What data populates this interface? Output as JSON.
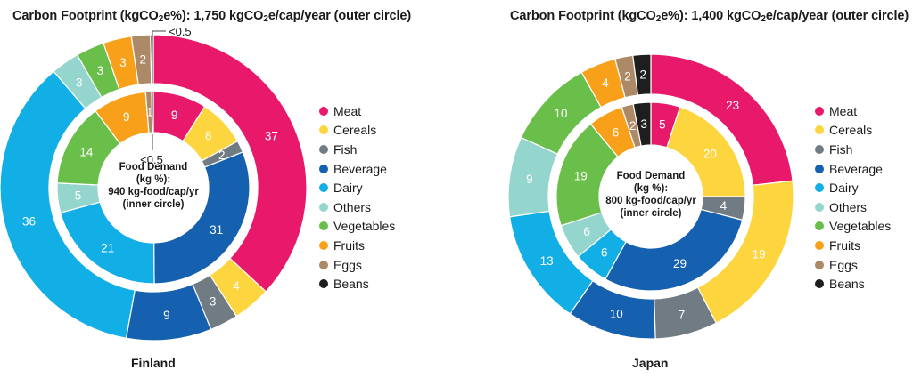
{
  "categories": [
    "Meat",
    "Cereals",
    "Fish",
    "Beverage",
    "Dairy",
    "Others",
    "Vegetables",
    "Fruits",
    "Eggs",
    "Beans"
  ],
  "colors": {
    "Meat": "#e8196b",
    "Cereals": "#fcd53f",
    "Fish": "#707b84",
    "Beverage": "#1660b0",
    "Dairy": "#12aee6",
    "Others": "#94d5cd",
    "Vegetables": "#6abf4b",
    "Fruits": "#f9a01b",
    "Eggs": "#ad8a67",
    "Beans": "#1e1e1e"
  },
  "chart_data": [
    {
      "type": "pie",
      "name": "Finland",
      "title": "Carbon Footprint (kgCO₂e%): 1,750 kgCO₂e/cap/year (outer circle)",
      "center_label": [
        "Food Demand",
        "(kg %):",
        "940 kg-food/cap/yr",
        "(inner circle)"
      ],
      "outer": [
        {
          "category": "Meat",
          "value": 37,
          "label": "37"
        },
        {
          "category": "Cereals",
          "value": 4,
          "label": "4"
        },
        {
          "category": "Fish",
          "value": 3,
          "label": "3"
        },
        {
          "category": "Beverage",
          "value": 9,
          "label": "9"
        },
        {
          "category": "Dairy",
          "value": 36,
          "label": "36"
        },
        {
          "category": "Others",
          "value": 3,
          "label": "3"
        },
        {
          "category": "Vegetables",
          "value": 3,
          "label": "3"
        },
        {
          "category": "Fruits",
          "value": 3,
          "label": "3"
        },
        {
          "category": "Eggs",
          "value": 2,
          "label": "2"
        },
        {
          "category": "Beans",
          "value": 0.3,
          "label": "<0.5"
        }
      ],
      "inner": [
        {
          "category": "Meat",
          "value": 9,
          "label": "9"
        },
        {
          "category": "Cereals",
          "value": 8,
          "label": "8"
        },
        {
          "category": "Fish",
          "value": 2,
          "label": "2"
        },
        {
          "category": "Beverage",
          "value": 31,
          "label": "31"
        },
        {
          "category": "Dairy",
          "value": 21,
          "label": "21"
        },
        {
          "category": "Others",
          "value": 5,
          "label": "5"
        },
        {
          "category": "Vegetables",
          "value": 14,
          "label": "14"
        },
        {
          "category": "Fruits",
          "value": 9,
          "label": "9"
        },
        {
          "category": "Eggs",
          "value": 1,
          "label": "1"
        },
        {
          "category": "Beans",
          "value": 0.3,
          "label": "<0.5"
        }
      ]
    },
    {
      "type": "pie",
      "name": "Japan",
      "title": "Carbon Footprint (kgCO₂e%): 1,400 kgCO₂e/cap/year (outer circle)",
      "center_label": [
        "Food Demand",
        "(kg %):",
        "800 kg-food/cap/yr",
        "(inner circle)"
      ],
      "outer": [
        {
          "category": "Meat",
          "value": 23,
          "label": "23"
        },
        {
          "category": "Cereals",
          "value": 19,
          "label": "19"
        },
        {
          "category": "Fish",
          "value": 7,
          "label": "7"
        },
        {
          "category": "Beverage",
          "value": 10,
          "label": "10"
        },
        {
          "category": "Dairy",
          "value": 13,
          "label": "13"
        },
        {
          "category": "Others",
          "value": 9,
          "label": "9"
        },
        {
          "category": "Vegetables",
          "value": 10,
          "label": "10"
        },
        {
          "category": "Fruits",
          "value": 4,
          "label": "4"
        },
        {
          "category": "Eggs",
          "value": 2,
          "label": "2"
        },
        {
          "category": "Beans",
          "value": 2,
          "label": "2"
        }
      ],
      "inner": [
        {
          "category": "Meat",
          "value": 5,
          "label": "5"
        },
        {
          "category": "Cereals",
          "value": 20,
          "label": "20"
        },
        {
          "category": "Fish",
          "value": 4,
          "label": "4"
        },
        {
          "category": "Beverage",
          "value": 29,
          "label": "29"
        },
        {
          "category": "Dairy",
          "value": 6,
          "label": "6"
        },
        {
          "category": "Others",
          "value": 6,
          "label": "6"
        },
        {
          "category": "Vegetables",
          "value": 19,
          "label": "19"
        },
        {
          "category": "Fruits",
          "value": 6,
          "label": "6"
        },
        {
          "category": "Eggs",
          "value": 2,
          "label": "2"
        },
        {
          "category": "Beans",
          "value": 3,
          "label": "3"
        }
      ]
    }
  ]
}
